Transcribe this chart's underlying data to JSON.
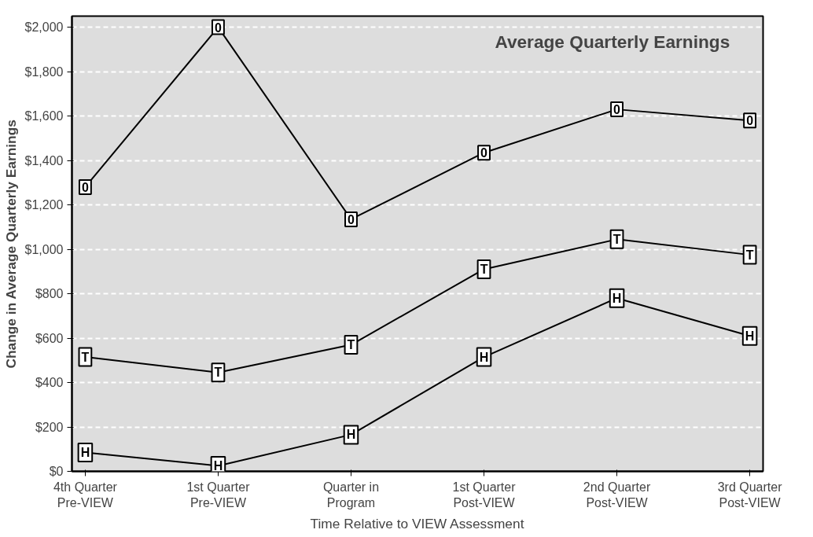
{
  "chart_data": {
    "type": "line",
    "title": "Average Quarterly Earnings",
    "xlabel": "Time Relative to VIEW Assessment",
    "ylabel": "Change in Average Quarterly Earnings",
    "categories": [
      "4th Quarter\nPre-VIEW",
      "1st Quarter\nPre-VIEW",
      "Quarter in\nProgram",
      "1st Quarter\nPost-VIEW",
      "2nd Quarter\nPost-VIEW",
      "3rd Quarter\nPost-VIEW"
    ],
    "series": [
      {
        "name": "0",
        "color": "#000000",
        "values": [
          1280,
          2000,
          1135,
          1435,
          1630,
          1580
        ]
      },
      {
        "name": "T",
        "color": "#000000",
        "values": [
          515,
          445,
          570,
          910,
          1045,
          975
        ]
      },
      {
        "name": "H",
        "color": "#000000",
        "values": [
          85,
          25,
          165,
          515,
          780,
          610
        ]
      }
    ],
    "ylim": [
      0,
      2050
    ],
    "yticks": [
      {
        "value": 0,
        "label": "$0"
      },
      {
        "value": 200,
        "label": "$200"
      },
      {
        "value": 400,
        "label": "$400"
      },
      {
        "value": 600,
        "label": "$600"
      },
      {
        "value": 800,
        "label": "$800"
      },
      {
        "value": 1000,
        "label": "$1,000"
      },
      {
        "value": 1200,
        "label": "$1,200"
      },
      {
        "value": 1400,
        "label": "$1,400"
      },
      {
        "value": 1600,
        "label": "$1,600"
      },
      {
        "value": 1800,
        "label": "$1,800"
      },
      {
        "value": 2000,
        "label": "$2,000"
      }
    ],
    "grid": "y",
    "marker": "square",
    "line_style": "solid",
    "legend": false
  }
}
